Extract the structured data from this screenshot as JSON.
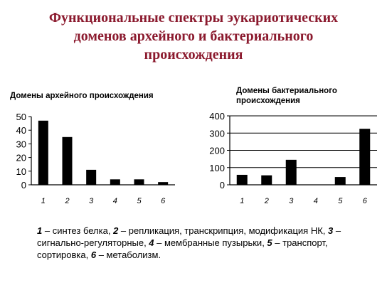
{
  "title_lines": [
    "Функциональные спектры эукариотических",
    "доменов архейного и бактериального",
    "происхождения"
  ],
  "chart_data": [
    {
      "type": "bar",
      "title": "Домены архейного происхождения",
      "categories": [
        "1",
        "2",
        "3",
        "4",
        "5",
        "6"
      ],
      "values": [
        47,
        35,
        11,
        4,
        4,
        2
      ],
      "ylim": [
        0,
        50
      ],
      "yticks": [
        "0",
        "10",
        "20",
        "30",
        "40",
        "50"
      ],
      "grid": false,
      "xlabel": "",
      "ylabel": ""
    },
    {
      "type": "bar",
      "title_lines": [
        "Домены бактериального",
        "происхождения"
      ],
      "categories": [
        "1",
        "2",
        "3",
        "4",
        "5",
        "6"
      ],
      "values": [
        58,
        55,
        145,
        0,
        45,
        325
      ],
      "ylim": [
        0,
        400
      ],
      "yticks": [
        "0",
        "100",
        "200",
        "300",
        "400"
      ],
      "grid": true,
      "xlabel": "",
      "ylabel": ""
    }
  ],
  "legend": [
    {
      "num": "1",
      "text": " – синтез белка, "
    },
    {
      "num": "2",
      "text": " – репликация, транскрипция, модификация НК, "
    },
    {
      "num": "3",
      "text": " – сигнально-регуляторные, "
    },
    {
      "num": "4",
      "text": " – мембранные пузырьки, "
    },
    {
      "num": "5",
      "text": " – транспорт, сортировка, "
    },
    {
      "num": "6",
      "text": " – метаболизм."
    }
  ],
  "colors": {
    "title": "#8b1a2e",
    "bar": "#000000",
    "axis": "#000000"
  }
}
